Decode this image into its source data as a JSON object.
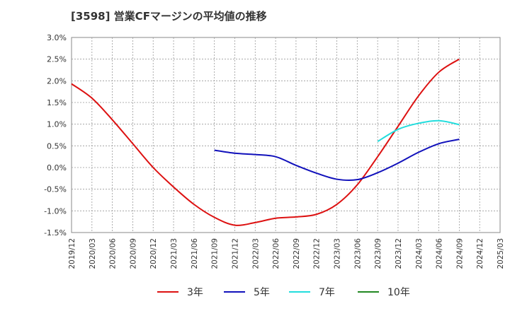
{
  "chart_data": {
    "type": "line",
    "title": "[3598]  営業CFマージンの平均値の推移",
    "xlabel": "",
    "ylabel": "",
    "x_ticks": [
      "2019/12",
      "2020/03",
      "2020/06",
      "2020/09",
      "2020/12",
      "2021/03",
      "2021/06",
      "2021/09",
      "2021/12",
      "2022/03",
      "2022/06",
      "2022/09",
      "2022/12",
      "2023/03",
      "2023/06",
      "2023/09",
      "2023/12",
      "2024/03",
      "2024/06",
      "2024/09",
      "2024/12",
      "2025/03"
    ],
    "y_ticks": [
      "3.0%",
      "2.5%",
      "2.0%",
      "1.5%",
      "1.0%",
      "0.5%",
      "0.0%",
      "-0.5%",
      "-1.0%",
      "-1.5%"
    ],
    "ylim": [
      -1.5,
      3.0
    ],
    "grid": true,
    "legend_position": "bottom",
    "series": [
      {
        "name": "3年",
        "color": "#dd1111",
        "x": [
          "2019/12",
          "2020/03",
          "2020/06",
          "2020/09",
          "2020/12",
          "2021/03",
          "2021/06",
          "2021/09",
          "2021/12",
          "2022/03",
          "2022/06",
          "2022/09",
          "2022/12",
          "2023/03",
          "2023/06",
          "2023/09",
          "2023/12",
          "2024/03",
          "2024/06",
          "2024/09"
        ],
        "values": [
          1.93,
          1.6,
          1.1,
          0.55,
          0.0,
          -0.45,
          -0.85,
          -1.15,
          -1.33,
          -1.27,
          -1.17,
          -1.14,
          -1.08,
          -0.85,
          -0.4,
          0.25,
          0.95,
          1.65,
          2.2,
          2.5
        ]
      },
      {
        "name": "5年",
        "color": "#1111bb",
        "x": [
          "2021/09",
          "2021/12",
          "2022/03",
          "2022/06",
          "2022/09",
          "2022/12",
          "2023/03",
          "2023/06",
          "2023/09",
          "2023/12",
          "2024/03",
          "2024/06",
          "2024/09"
        ],
        "values": [
          0.4,
          0.33,
          0.3,
          0.25,
          0.05,
          -0.13,
          -0.27,
          -0.28,
          -0.12,
          0.1,
          0.35,
          0.55,
          0.65
        ]
      },
      {
        "name": "7年",
        "color": "#22dddd",
        "x": [
          "2023/09",
          "2023/12",
          "2024/03",
          "2024/06",
          "2024/09"
        ],
        "values": [
          0.6,
          0.88,
          1.02,
          1.08,
          0.99
        ]
      },
      {
        "name": "10年",
        "color": "#228822",
        "x": [],
        "values": []
      }
    ]
  }
}
